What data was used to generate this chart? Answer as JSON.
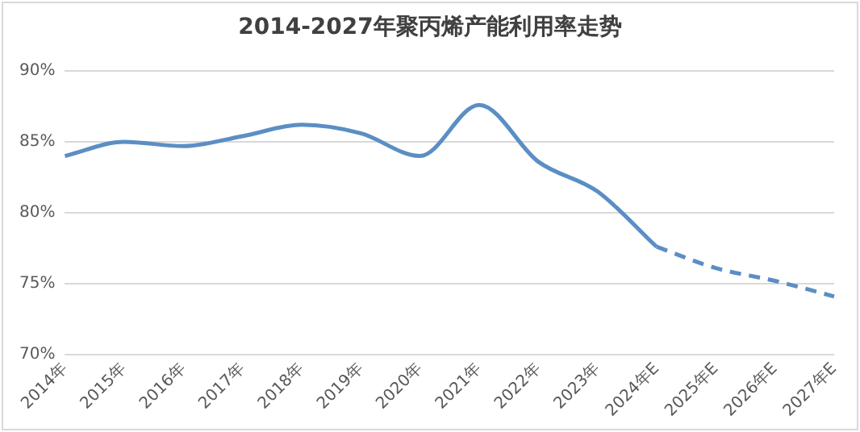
{
  "chart_data": {
    "type": "line",
    "title": "2014-2027年聚丙烯产能利用率走势",
    "categories": [
      "2014年",
      "2015年",
      "2016年",
      "2017年",
      "2018年",
      "2019年",
      "2020年",
      "2021年",
      "2022年",
      "2023年",
      "2024年E",
      "2025年E",
      "2026年E",
      "2027年E"
    ],
    "series": [
      {
        "color": "#5b8ec4",
        "line_style": "solid",
        "values": [
          84.0,
          85.0,
          84.7,
          85.4,
          86.2,
          85.6,
          84.0,
          87.6,
          83.6,
          81.5,
          77.6,
          null,
          null,
          null
        ]
      },
      {
        "color": "#5b8ec4",
        "line_style": "dashed",
        "values": [
          null,
          null,
          null,
          null,
          null,
          null,
          null,
          null,
          null,
          null,
          77.6,
          76.1,
          75.2,
          74.1
        ]
      }
    ],
    "ylim": [
      70,
      90
    ],
    "yticks": [
      {
        "value": 70,
        "label": "70%"
      },
      {
        "value": 75,
        "label": "75%"
      },
      {
        "value": 80,
        "label": "80%"
      },
      {
        "value": 85,
        "label": "85%"
      },
      {
        "value": 90,
        "label": "90%"
      }
    ],
    "grid": "y",
    "legend": false,
    "marker": "none"
  }
}
